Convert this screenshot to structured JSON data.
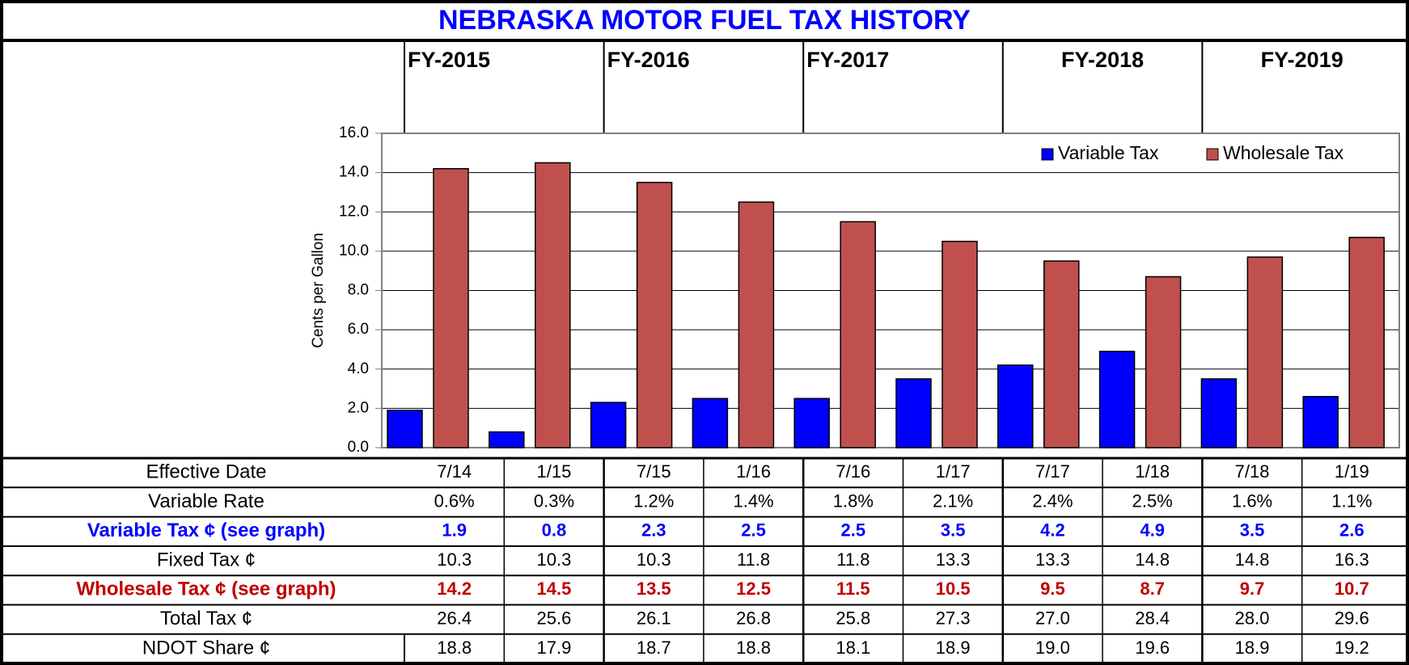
{
  "chart_data": {
    "type": "bar",
    "title": "NEBRASKA MOTOR FUEL TAX HISTORY",
    "fiscal_years": [
      "FY-2015",
      "FY-2016",
      "FY-2017",
      "FY-2018",
      "FY-2019"
    ],
    "y_label": "Cents per Gallon",
    "categories": [
      "7/14",
      "1/15",
      "7/15",
      "1/16",
      "7/16",
      "1/17",
      "7/17",
      "1/18",
      "7/18",
      "1/19"
    ],
    "series": [
      {
        "name": "Variable Tax",
        "color": "#0000ff",
        "values": [
          1.9,
          0.8,
          2.3,
          2.5,
          2.5,
          3.5,
          4.2,
          4.9,
          3.5,
          2.6
        ]
      },
      {
        "name": "Wholesale Tax",
        "color": "#c0504d",
        "values": [
          14.2,
          14.5,
          13.5,
          12.5,
          11.5,
          10.5,
          9.5,
          8.7,
          9.7,
          10.7
        ]
      }
    ],
    "ylim": [
      0,
      16
    ],
    "yticks": [
      {
        "value": 0,
        "label": "0.0"
      },
      {
        "value": 2,
        "label": "2.0"
      },
      {
        "value": 4,
        "label": "4.0"
      },
      {
        "value": 6,
        "label": "6.0"
      },
      {
        "value": 8,
        "label": "8.0"
      },
      {
        "value": 10,
        "label": "10.0"
      },
      {
        "value": 12,
        "label": "12.0"
      },
      {
        "value": 14,
        "label": "14.0"
      },
      {
        "value": 16,
        "label": "16.0"
      }
    ],
    "grid": true,
    "legend": "upper right"
  },
  "table": {
    "rows": [
      {
        "label": "Effective Date"
      },
      {
        "label": "Variable Rate",
        "values": [
          "0.6%",
          "0.3%",
          "1.2%",
          "1.4%",
          "1.8%",
          "2.1%",
          "2.4%",
          "2.5%",
          "1.6%",
          "1.1%"
        ]
      },
      {
        "label": "Variable Tax ¢ (see graph)"
      },
      {
        "label": "Fixed Tax ¢",
        "values": [
          "10.3",
          "10.3",
          "10.3",
          "11.8",
          "11.8",
          "13.3",
          "13.3",
          "14.8",
          "14.8",
          "16.3"
        ]
      },
      {
        "label": "Wholesale Tax ¢ (see graph)"
      },
      {
        "label": "Total Tax ¢",
        "values": [
          "26.4",
          "25.6",
          "26.1",
          "26.8",
          "25.8",
          "27.3",
          "27.0",
          "28.4",
          "28.0",
          "29.6"
        ]
      },
      {
        "label": "NDOT Share ¢",
        "values": [
          "18.8",
          "17.9",
          "18.7",
          "18.8",
          "18.1",
          "18.9",
          "19.0",
          "19.6",
          "18.9",
          "19.2"
        ]
      }
    ]
  }
}
